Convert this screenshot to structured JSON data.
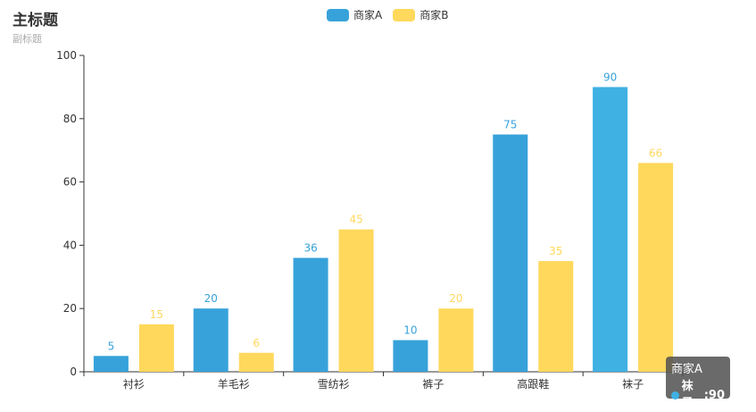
{
  "header": {
    "title": "主标题",
    "subtitle": "副标题"
  },
  "tooltip": {
    "series": "商家A",
    "category": "袜子",
    "separator": ": ",
    "value": "90",
    "dot_color": "#3fb1e3"
  },
  "chart_data": {
    "type": "bar",
    "title": "主标题",
    "subtitle": "副标题",
    "categories": [
      "衬衫",
      "羊毛衫",
      "雪纺衫",
      "裤子",
      "高跟鞋",
      "袜子"
    ],
    "series": [
      {
        "name": "商家A",
        "color": "#37a2da",
        "highlight_color": "#3fb1e3",
        "values": [
          5,
          20,
          36,
          10,
          75,
          90
        ]
      },
      {
        "name": "商家B",
        "color": "#ffd85c",
        "values": [
          15,
          6,
          45,
          20,
          35,
          66
        ]
      }
    ],
    "highlighted": {
      "series": 0,
      "category": 5
    },
    "ylim": [
      0,
      100
    ],
    "yticks": [
      0,
      20,
      40,
      60,
      80,
      100
    ],
    "legend_position": "top-center",
    "grid": false,
    "show_data_labels": true
  }
}
